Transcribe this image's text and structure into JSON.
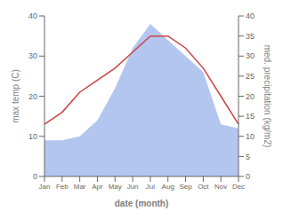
{
  "chart_data": {
    "type": "line",
    "categories": [
      "Jan",
      "Feb",
      "Mar",
      "Apr",
      "May",
      "Jun",
      "Jul",
      "Aug",
      "Sep",
      "Oct",
      "Nov",
      "Dec"
    ],
    "series": [
      {
        "type": "area",
        "color": "#b3c6f0",
        "axis": "y2",
        "values": [
          9,
          9,
          10,
          14,
          22,
          32,
          38,
          34,
          30,
          26,
          13,
          12
        ]
      },
      {
        "type": "line",
        "color": "#cc4444",
        "values": [
          13,
          16,
          21,
          24,
          27,
          31,
          35,
          35,
          32,
          27,
          20,
          13
        ]
      }
    ],
    "xlabel": "date (month)",
    "ylabel": "max temp (C)",
    "y2label": "med. precipitation (kg/m2)",
    "ylim": [
      0,
      40
    ],
    "yticks": [
      0,
      10,
      20,
      30,
      40
    ],
    "y2lim": [
      0,
      40
    ],
    "y2ticks": [
      0,
      5,
      10,
      15,
      20,
      25,
      30,
      35,
      40
    ],
    "grid": false
  }
}
